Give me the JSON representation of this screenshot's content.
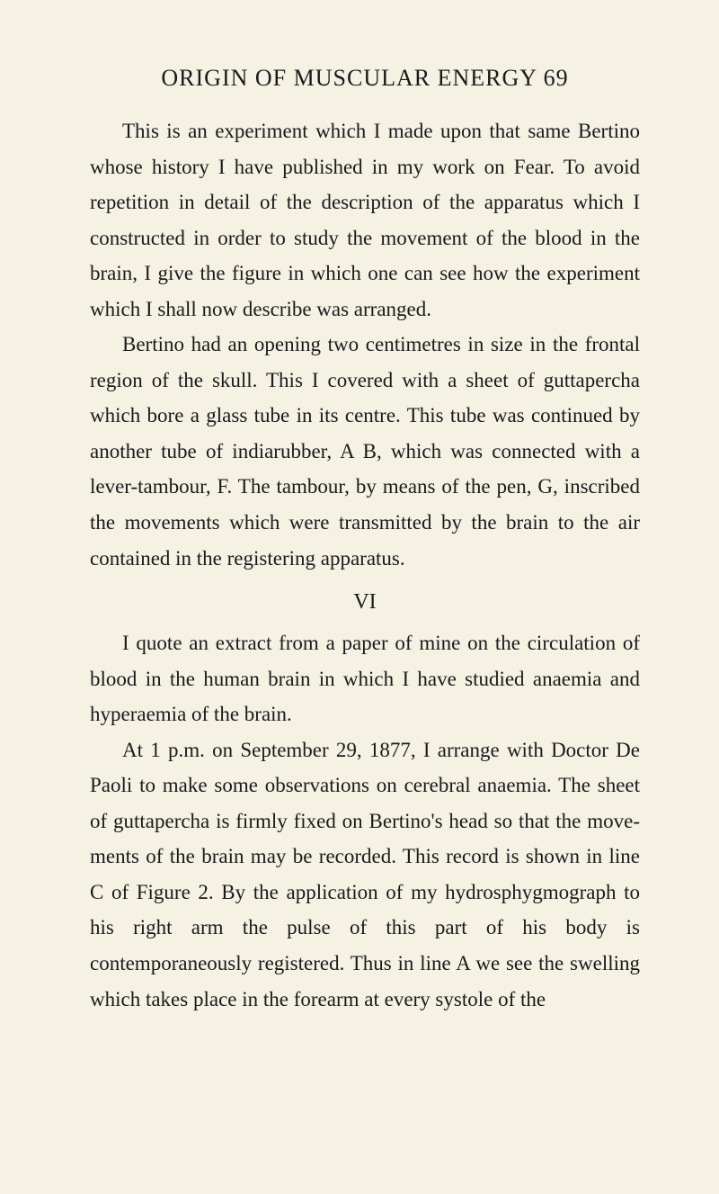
{
  "header": {
    "title": "ORIGIN OF MUSCULAR ENERGY",
    "page_number": "69"
  },
  "paragraphs": {
    "p1": "This is an experiment which I made upon that same Bertino whose history I have published in my work on Fear. To avoid repetition in detail of the description of the apparatus which I constructed in order to study the movement of the blood in the brain, I give the figure in which one can see how the experiment which I shall now describe was arranged.",
    "p2": "Bertino had an opening two centimetres in size in the frontal region of the skull. This I covered with a sheet of guttapercha which bore a glass tube in its centre. This tube was continued by another tube of indiarubber, A B, which was connected with a lever-tambour, F. The tambour, by means of the pen, G, inscribed the movements which were trans­mitted by the brain to the air contained in the registering apparatus.",
    "section": "VI",
    "p3": "I quote an extract from a paper of mine on the circulation of blood in the human brain in which I have studied anaemia and hyperaemia of the brain.",
    "p4": "At 1 p.m. on September 29, 1877, I arrange with Doctor De Paoli to make some observations on cerebral anaemia. The sheet of guttapercha is firmly fixed on Bertino's head so that the move­ments of the brain may be recorded. This record is shown in line C of Figure 2. By the application of my hydrosphygmograph to his right arm the pulse of this part of his body is contemporaneously regis­tered. Thus in line A we see the swelling which takes place in the forearm at every systole of the"
  }
}
